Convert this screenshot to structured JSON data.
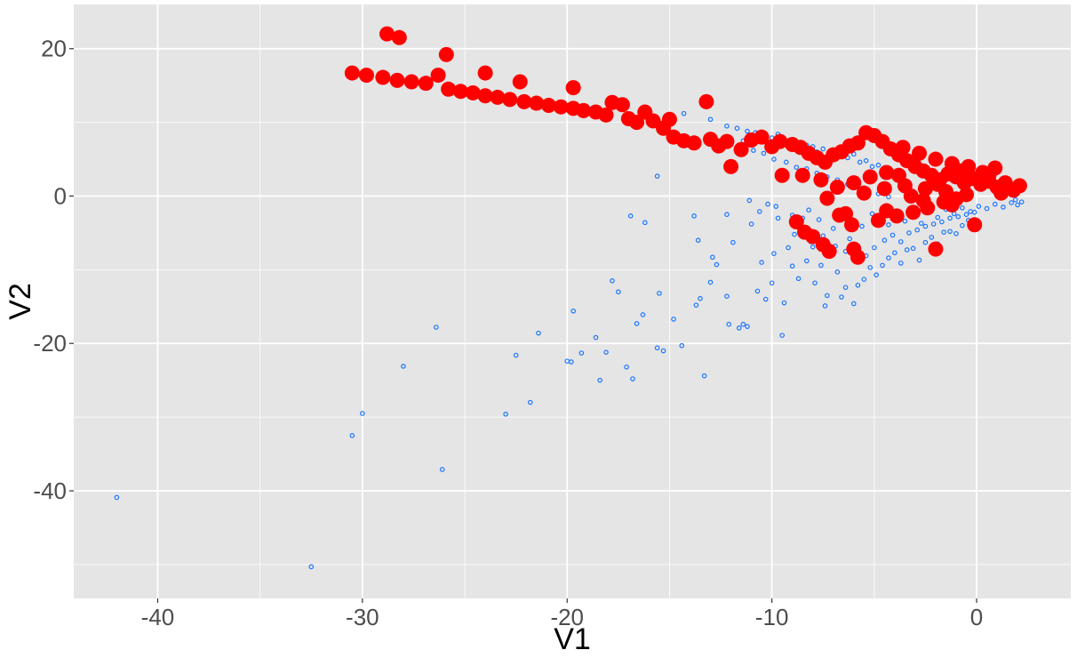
{
  "chart_data": {
    "type": "scatter",
    "title": "",
    "xlabel": "V1",
    "ylabel": "V2",
    "xlim": [
      -44.1,
      4.6
    ],
    "ylim": [
      -54.6,
      26.0
    ],
    "x_ticks": [
      -40,
      -30,
      -20,
      -10,
      0
    ],
    "x_tick_labels": [
      "-40",
      "-30",
      "-20",
      "-10",
      "0"
    ],
    "y_ticks": [
      -40,
      -20,
      0,
      20
    ],
    "y_tick_labels": [
      "-40",
      "-20",
      "0",
      "20"
    ],
    "grid": true,
    "legend": "none",
    "colors": {
      "panel": "#e5e5e5",
      "grid_major": "#ffffff",
      "blue_series": "#1a75ff",
      "red_series": "#ff0000",
      "tick_text": "#4d4d4d",
      "title_text": "#000000"
    },
    "series": [
      {
        "marker": "small-hollow-circle",
        "color": "#1a75ff",
        "points": [
          [
            -42.0,
            -40.9
          ],
          [
            -32.5,
            -50.3
          ],
          [
            -30.5,
            -32.5
          ],
          [
            -30.0,
            -29.5
          ],
          [
            -28.0,
            -23.1
          ],
          [
            -26.4,
            -17.8
          ],
          [
            -26.1,
            -37.1
          ],
          [
            -23.0,
            -29.6
          ],
          [
            -22.5,
            -21.6
          ],
          [
            -21.8,
            -28.0
          ],
          [
            -21.4,
            -18.6
          ],
          [
            -20.0,
            -22.4
          ],
          [
            -19.8,
            -22.5
          ],
          [
            -19.7,
            -15.6
          ],
          [
            -19.3,
            -21.3
          ],
          [
            -18.6,
            -19.2
          ],
          [
            -18.4,
            -25.0
          ],
          [
            -18.1,
            -21.2
          ],
          [
            -17.8,
            -11.5
          ],
          [
            -17.5,
            -13.0
          ],
          [
            -17.1,
            -23.2
          ],
          [
            -16.9,
            -2.7
          ],
          [
            -16.8,
            -24.8
          ],
          [
            -16.6,
            -17.3
          ],
          [
            -16.3,
            -16.1
          ],
          [
            -16.2,
            -3.6
          ],
          [
            -15.5,
            -13.2
          ],
          [
            -15.6,
            -20.6
          ],
          [
            -15.3,
            -21.0
          ],
          [
            -15.6,
            2.7
          ],
          [
            -14.8,
            -16.7
          ],
          [
            -14.4,
            -20.3
          ],
          [
            -13.8,
            -2.7
          ],
          [
            -13.6,
            -6.0
          ],
          [
            -13.7,
            -14.8
          ],
          [
            -13.5,
            -13.9
          ],
          [
            -13.3,
            -24.4
          ],
          [
            -13.0,
            -11.7
          ],
          [
            -12.9,
            -8.3
          ],
          [
            -12.7,
            -9.3
          ],
          [
            -12.2,
            -2.5
          ],
          [
            -12.1,
            -17.4
          ],
          [
            -12.2,
            -13.6
          ],
          [
            -11.9,
            -6.3
          ],
          [
            -11.6,
            -17.9
          ],
          [
            -11.4,
            -17.4
          ],
          [
            -11.2,
            -17.7
          ],
          [
            -11.1,
            -0.6
          ],
          [
            -11.0,
            -3.8
          ],
          [
            -10.7,
            -12.9
          ],
          [
            -10.5,
            -9.0
          ],
          [
            -10.3,
            -14.0
          ],
          [
            -10.0,
            -11.8
          ],
          [
            -10.2,
            -1.1
          ],
          [
            -9.9,
            -7.8
          ],
          [
            -9.7,
            -3.0
          ],
          [
            -9.5,
            -18.9
          ],
          [
            -9.4,
            -14.5
          ],
          [
            -9.2,
            -7.0
          ],
          [
            -9.0,
            -9.5
          ],
          [
            -8.9,
            -5.2
          ],
          [
            -8.7,
            -11.2
          ],
          [
            -8.5,
            -3.0
          ],
          [
            -8.3,
            -8.8
          ],
          [
            -8.1,
            -6.2
          ],
          [
            -7.9,
            -11.8
          ],
          [
            -7.6,
            -9.4
          ],
          [
            -7.4,
            -14.9
          ],
          [
            -7.3,
            -13.5
          ],
          [
            -7.1,
            -8.0
          ],
          [
            -6.8,
            -10.3
          ],
          [
            -6.6,
            -13.7
          ],
          [
            -6.4,
            -12.4
          ],
          [
            -6.2,
            -5.8
          ],
          [
            -6.0,
            -14.6
          ],
          [
            -5.8,
            -12.1
          ],
          [
            -5.5,
            -11.3
          ],
          [
            -5.2,
            -9.7
          ],
          [
            -4.9,
            -10.7
          ],
          [
            -4.6,
            -9.4
          ],
          [
            -4.3,
            -8.4
          ],
          [
            -4.0,
            -7.7
          ],
          [
            -3.7,
            -9.1
          ],
          [
            -3.4,
            -7.3
          ],
          [
            -3.1,
            -7.1
          ],
          [
            -2.8,
            -8.7
          ],
          [
            -2.5,
            -6.3
          ],
          [
            -2.2,
            -5.6
          ],
          [
            -1.9,
            -6.5
          ],
          [
            -1.6,
            -4.9
          ],
          [
            -1.3,
            -4.8
          ],
          [
            -1.0,
            -5.1
          ],
          [
            -0.7,
            -4.0
          ],
          [
            -0.4,
            -3.3
          ],
          [
            -14.3,
            11.2
          ],
          [
            -13.0,
            10.4
          ],
          [
            -12.2,
            9.5
          ],
          [
            -11.7,
            9.2
          ],
          [
            -11.2,
            8.8
          ],
          [
            -10.8,
            8.6
          ],
          [
            -10.5,
            8.2
          ],
          [
            -10.0,
            7.9
          ],
          [
            -9.7,
            8.4
          ],
          [
            -9.4,
            7.7
          ],
          [
            -9.1,
            7.5
          ],
          [
            -8.9,
            6.8
          ],
          [
            -8.6,
            7.3
          ],
          [
            -8.3,
            6.9
          ],
          [
            -8.0,
            6.7
          ],
          [
            -7.8,
            6.0
          ],
          [
            -7.5,
            6.4
          ],
          [
            -7.2,
            5.7
          ],
          [
            -6.9,
            6.1
          ],
          [
            -6.6,
            5.4
          ],
          [
            -6.3,
            5.2
          ],
          [
            -6.0,
            5.7
          ],
          [
            -5.7,
            4.6
          ],
          [
            -5.4,
            4.8
          ],
          [
            -5.1,
            4.0
          ],
          [
            -4.8,
            4.2
          ],
          [
            -4.5,
            3.6
          ],
          [
            -4.2,
            3.3
          ],
          [
            -3.9,
            2.9
          ],
          [
            -3.6,
            2.7
          ],
          [
            -11.4,
            7.5
          ],
          [
            -10.9,
            6.2
          ],
          [
            -10.4,
            5.8
          ],
          [
            -9.9,
            5.0
          ],
          [
            -9.3,
            4.6
          ],
          [
            -8.8,
            3.9
          ],
          [
            -8.3,
            3.7
          ],
          [
            -7.8,
            3.1
          ],
          [
            -7.3,
            2.6
          ],
          [
            -6.8,
            2.2
          ],
          [
            -6.3,
            1.6
          ],
          [
            -5.8,
            1.2
          ],
          [
            -5.3,
            0.8
          ],
          [
            -4.8,
            0.3
          ],
          [
            -4.3,
            -0.1
          ],
          [
            -10.6,
            -2.1
          ],
          [
            -9.8,
            -1.4
          ],
          [
            -9.0,
            -2.6
          ],
          [
            -8.2,
            -1.9
          ],
          [
            -7.7,
            -3.2
          ],
          [
            -7.0,
            -4.4
          ],
          [
            -6.5,
            -2.9
          ],
          [
            -6.0,
            -3.7
          ],
          [
            -5.6,
            -4.1
          ],
          [
            -5.1,
            -2.4
          ],
          [
            -4.7,
            -3.0
          ],
          [
            -4.3,
            -3.9
          ],
          [
            -3.9,
            -2.1
          ],
          [
            -3.5,
            -3.4
          ],
          [
            -3.1,
            -2.6
          ],
          [
            -2.7,
            -3.7
          ],
          [
            -2.3,
            -2.2
          ],
          [
            -1.9,
            -2.9
          ],
          [
            -1.5,
            -1.8
          ],
          [
            -1.1,
            -2.4
          ],
          [
            -0.7,
            -1.6
          ],
          [
            -0.3,
            -2.1
          ],
          [
            0.1,
            -1.4
          ],
          [
            0.5,
            -1.7
          ],
          [
            0.9,
            -1.1
          ],
          [
            1.3,
            -1.5
          ],
          [
            1.7,
            -0.9
          ],
          [
            2.0,
            -1.2
          ],
          [
            2.2,
            -0.8
          ],
          [
            1.9,
            -0.5
          ],
          [
            -8.6,
            -5.0
          ],
          [
            -8.0,
            -6.9
          ],
          [
            -7.5,
            -5.4
          ],
          [
            -6.9,
            -6.8
          ],
          [
            -6.4,
            -7.5
          ],
          [
            -5.9,
            -6.6
          ],
          [
            -5.4,
            -8.1
          ],
          [
            -5.0,
            -7.0
          ],
          [
            -4.5,
            -6.0
          ],
          [
            -4.1,
            -5.3
          ],
          [
            -3.7,
            -6.2
          ],
          [
            -3.3,
            -5.0
          ],
          [
            -2.9,
            -4.6
          ],
          [
            -2.5,
            -4.1
          ],
          [
            -2.1,
            -3.8
          ],
          [
            -1.7,
            -3.5
          ],
          [
            -1.3,
            -3.0
          ],
          [
            -0.9,
            -2.8
          ],
          [
            -0.5,
            -2.5
          ],
          [
            -0.1,
            -2.2
          ]
        ]
      },
      {
        "marker": "large-filled-circle",
        "color": "#ff0000",
        "points": [
          [
            -28.8,
            22.0
          ],
          [
            -28.2,
            21.5
          ],
          [
            -25.9,
            19.2
          ],
          [
            -30.5,
            16.7
          ],
          [
            -29.8,
            16.4
          ],
          [
            -29.0,
            16.1
          ],
          [
            -28.3,
            15.7
          ],
          [
            -27.6,
            15.5
          ],
          [
            -26.9,
            15.3
          ],
          [
            -26.3,
            16.4
          ],
          [
            -25.8,
            14.5
          ],
          [
            -25.2,
            14.2
          ],
          [
            -24.6,
            14.0
          ],
          [
            -24.0,
            13.6
          ],
          [
            -24.0,
            16.7
          ],
          [
            -23.4,
            13.4
          ],
          [
            -22.8,
            13.1
          ],
          [
            -22.3,
            15.5
          ],
          [
            -22.1,
            12.8
          ],
          [
            -21.5,
            12.6
          ],
          [
            -20.9,
            12.3
          ],
          [
            -20.3,
            12.1
          ],
          [
            -19.7,
            14.7
          ],
          [
            -19.7,
            11.9
          ],
          [
            -19.2,
            11.6
          ],
          [
            -18.6,
            11.4
          ],
          [
            -18.1,
            11.0
          ],
          [
            -17.8,
            12.7
          ],
          [
            -17.3,
            12.4
          ],
          [
            -17.0,
            10.5
          ],
          [
            -16.6,
            10.0
          ],
          [
            -16.2,
            11.4
          ],
          [
            -15.8,
            10.2
          ],
          [
            -15.3,
            9.2
          ],
          [
            -15.0,
            10.4
          ],
          [
            -14.8,
            8.0
          ],
          [
            -14.3,
            7.5
          ],
          [
            -13.8,
            7.2
          ],
          [
            -13.2,
            12.8
          ],
          [
            -13.0,
            7.7
          ],
          [
            -12.6,
            6.8
          ],
          [
            -12.2,
            7.4
          ],
          [
            -12.0,
            4.0
          ],
          [
            -11.5,
            6.3
          ],
          [
            -11.0,
            7.6
          ],
          [
            -10.5,
            8.0
          ],
          [
            -10.0,
            6.7
          ],
          [
            -9.6,
            7.4
          ],
          [
            -9.0,
            7.0
          ],
          [
            -8.6,
            6.6
          ],
          [
            -8.2,
            5.8
          ],
          [
            -7.8,
            5.2
          ],
          [
            -7.4,
            4.6
          ],
          [
            -7.0,
            5.6
          ],
          [
            -6.6,
            6.0
          ],
          [
            -6.2,
            6.8
          ],
          [
            -5.8,
            7.2
          ],
          [
            -5.4,
            8.6
          ],
          [
            -5.0,
            8.2
          ],
          [
            -4.6,
            7.4
          ],
          [
            -4.2,
            6.4
          ],
          [
            -3.8,
            5.6
          ],
          [
            -3.4,
            4.8
          ],
          [
            -3.0,
            4.0
          ],
          [
            -2.6,
            3.4
          ],
          [
            -2.2,
            2.8
          ],
          [
            -1.8,
            2.2
          ],
          [
            -1.4,
            3.0
          ],
          [
            -1.0,
            2.6
          ],
          [
            -0.6,
            1.8
          ],
          [
            -0.2,
            2.4
          ],
          [
            0.2,
            1.6
          ],
          [
            0.6,
            2.0
          ],
          [
            1.0,
            1.2
          ],
          [
            1.4,
            1.8
          ],
          [
            1.8,
            0.8
          ],
          [
            2.1,
            1.4
          ],
          [
            0.9,
            3.8
          ],
          [
            0.3,
            3.2
          ],
          [
            -0.4,
            4.0
          ],
          [
            -1.2,
            4.4
          ],
          [
            -2.0,
            5.0
          ],
          [
            -2.8,
            5.8
          ],
          [
            -3.6,
            6.6
          ],
          [
            -4.4,
            3.2
          ],
          [
            -5.2,
            2.6
          ],
          [
            -6.0,
            1.8
          ],
          [
            -6.8,
            1.2
          ],
          [
            -7.6,
            2.2
          ],
          [
            -8.5,
            2.8
          ],
          [
            -9.5,
            2.8
          ],
          [
            -7.3,
            -0.3
          ],
          [
            -8.8,
            -3.5
          ],
          [
            -8.4,
            -4.9
          ],
          [
            -8.0,
            -5.5
          ],
          [
            -7.5,
            -6.6
          ],
          [
            -7.2,
            -7.5
          ],
          [
            -6.7,
            -2.6
          ],
          [
            -6.4,
            -2.4
          ],
          [
            -6.1,
            -3.9
          ],
          [
            -6.0,
            -7.2
          ],
          [
            -5.8,
            -8.3
          ],
          [
            -4.8,
            -3.3
          ],
          [
            -4.4,
            -2.0
          ],
          [
            -3.9,
            -2.7
          ],
          [
            -3.1,
            -2.2
          ],
          [
            -2.4,
            -1.6
          ],
          [
            -2.0,
            -7.2
          ],
          [
            -1.6,
            -0.8
          ],
          [
            -1.0,
            -0.4
          ],
          [
            -0.1,
            -3.9
          ],
          [
            -0.5,
            0.2
          ],
          [
            -1.5,
            0.6
          ],
          [
            -2.5,
            1.0
          ],
          [
            -3.5,
            1.4
          ],
          [
            -4.5,
            1.0
          ],
          [
            -5.5,
            0.4
          ],
          [
            -3.2,
            0.0
          ],
          [
            -2.6,
            -0.6
          ],
          [
            -1.9,
            1.6
          ],
          [
            -0.8,
            3.4
          ],
          [
            0.6,
            2.8
          ],
          [
            1.2,
            0.4
          ],
          [
            -1.2,
            -1.2
          ],
          [
            -3.8,
            2.8
          ]
        ]
      }
    ]
  }
}
